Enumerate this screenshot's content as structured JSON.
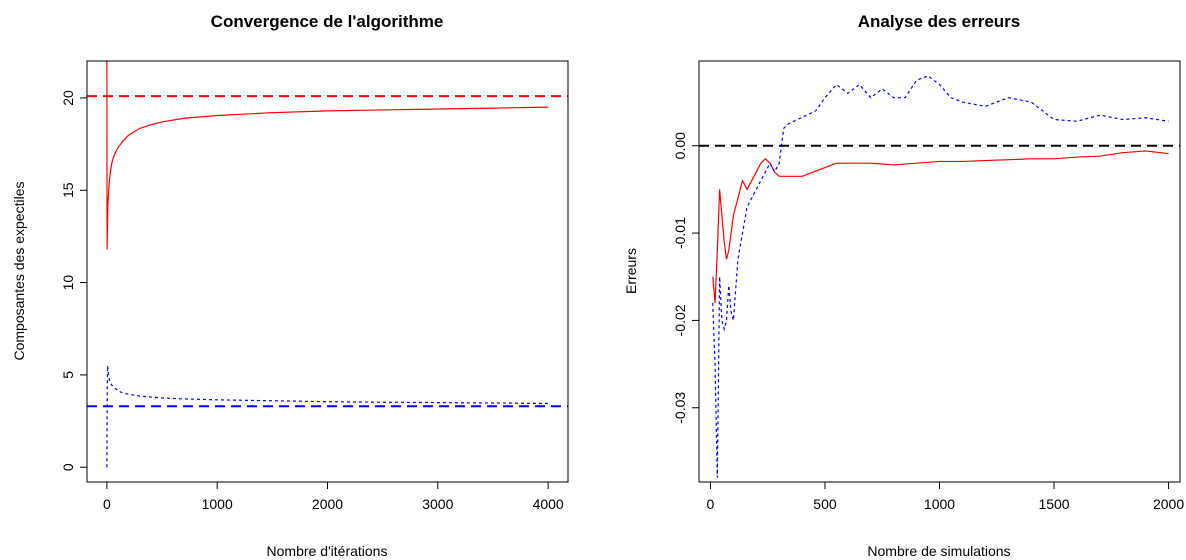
{
  "chart_data": [
    {
      "type": "line",
      "title": "Convergence de l'algorithme",
      "xlabel": "Nombre d'itérations",
      "ylabel": "Composantes des expectiles",
      "xlim": [
        -180,
        4180
      ],
      "ylim": [
        -0.8,
        22
      ],
      "x_ticks": [
        0,
        1000,
        2000,
        3000,
        4000
      ],
      "y_ticks": [
        0,
        5,
        10,
        15,
        20
      ],
      "grid": false,
      "series": [
        {
          "color": "#ff0000",
          "dash": "solid",
          "x": [
            0,
            2,
            4,
            7,
            10,
            15,
            20,
            30,
            40,
            50,
            70,
            100,
            150,
            200,
            300,
            400,
            500,
            700,
            1000,
            1500,
            2000,
            2500,
            3000,
            3500,
            4000
          ],
          "y": [
            22,
            11.8,
            12.5,
            13.5,
            14.2,
            14.8,
            15.3,
            15.9,
            16.3,
            16.6,
            16.95,
            17.3,
            17.7,
            18.0,
            18.35,
            18.55,
            18.7,
            18.9,
            19.05,
            19.2,
            19.3,
            19.35,
            19.4,
            19.45,
            19.5
          ]
        },
        {
          "color": "#0000ff",
          "dash": "dotted",
          "x": [
            0,
            2,
            4,
            7,
            10,
            15,
            20,
            30,
            50,
            70,
            100,
            150,
            200,
            300,
            400,
            500,
            700,
            1000,
            1500,
            2000,
            2500,
            3000,
            3500,
            4000
          ],
          "y": [
            0,
            2.5,
            4.5,
            5.5,
            5.3,
            5.0,
            4.8,
            4.6,
            4.4,
            4.3,
            4.15,
            4.0,
            3.95,
            3.85,
            3.8,
            3.75,
            3.7,
            3.65,
            3.6,
            3.55,
            3.52,
            3.5,
            3.48,
            3.45
          ]
        }
      ],
      "hlines": [
        {
          "y": 20.1,
          "color": "#ff0000",
          "dash": "dashed"
        },
        {
          "y": 3.3,
          "color": "#0000ff",
          "dash": "dashed"
        }
      ]
    },
    {
      "type": "line",
      "title": "Analyse des erreurs",
      "xlabel": "Nombre de simulations",
      "ylabel": "Erreurs",
      "xlim": [
        -50,
        2050
      ],
      "ylim": [
        -0.0385,
        0.0097
      ],
      "x_ticks": [
        0,
        500,
        1000,
        1500,
        2000
      ],
      "y_ticks": [
        0.0,
        -0.01,
        -0.02,
        -0.03
      ],
      "y_tick_labels": [
        "0.00",
        "-0.01",
        "-0.02",
        "-0.03"
      ],
      "grid": false,
      "series": [
        {
          "color": "#ff0000",
          "dash": "solid",
          "x": [
            10,
            20,
            30,
            40,
            50,
            60,
            70,
            80,
            90,
            100,
            120,
            140,
            160,
            180,
            200,
            220,
            240,
            260,
            280,
            300,
            350,
            400,
            450,
            500,
            550,
            600,
            700,
            800,
            900,
            1000,
            1100,
            1200,
            1300,
            1400,
            1500,
            1600,
            1700,
            1800,
            1900,
            2000
          ],
          "y": [
            -0.015,
            -0.018,
            -0.012,
            -0.005,
            -0.008,
            -0.011,
            -0.013,
            -0.012,
            -0.01,
            -0.008,
            -0.006,
            -0.004,
            -0.005,
            -0.004,
            -0.003,
            -0.002,
            -0.0015,
            -0.002,
            -0.003,
            -0.0035,
            -0.0035,
            -0.0035,
            -0.003,
            -0.0025,
            -0.002,
            -0.002,
            -0.002,
            -0.0022,
            -0.002,
            -0.0018,
            -0.0018,
            -0.0017,
            -0.0016,
            -0.0015,
            -0.0015,
            -0.0013,
            -0.0012,
            -0.0008,
            -0.0006,
            -0.0009
          ]
        },
        {
          "color": "#0000ff",
          "dash": "dotted",
          "x": [
            10,
            20,
            30,
            40,
            50,
            60,
            70,
            80,
            90,
            100,
            120,
            140,
            160,
            180,
            200,
            220,
            240,
            260,
            280,
            300,
            320,
            340,
            380,
            420,
            460,
            500,
            550,
            600,
            650,
            700,
            750,
            800,
            850,
            900,
            950,
            1000,
            1050,
            1100,
            1200,
            1300,
            1400,
            1500,
            1600,
            1700,
            1800,
            1900,
            2000
          ],
          "y": [
            -0.018,
            -0.025,
            -0.038,
            -0.015,
            -0.02,
            -0.021,
            -0.02,
            -0.016,
            -0.019,
            -0.02,
            -0.013,
            -0.01,
            -0.007,
            -0.006,
            -0.005,
            -0.004,
            -0.003,
            -0.002,
            -0.003,
            -0.002,
            0.002,
            0.0025,
            0.003,
            0.0035,
            0.004,
            0.0055,
            0.007,
            0.006,
            0.007,
            0.0055,
            0.0065,
            0.0055,
            0.0055,
            0.0075,
            0.008,
            0.007,
            0.0055,
            0.005,
            0.0045,
            0.0055,
            0.005,
            0.003,
            0.0028,
            0.0035,
            0.003,
            0.0032,
            0.0028
          ]
        }
      ],
      "hlines": [
        {
          "y": 0,
          "color": "#000000",
          "dash": "dashed"
        }
      ]
    }
  ]
}
